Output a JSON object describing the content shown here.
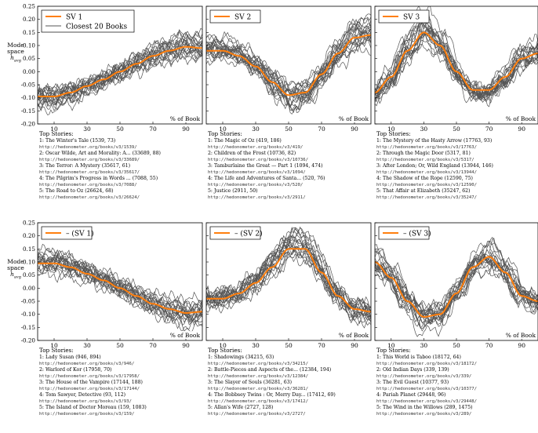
{
  "chart_data": [
    {
      "type": "line",
      "title": "",
      "xlabel": "% of Book",
      "ylabel": "Mode space h_avg",
      "xlim": [
        0,
        100
      ],
      "ylim": [
        -0.2,
        0.25
      ],
      "xticks": [
        10,
        30,
        50,
        70,
        90
      ],
      "yticks": [
        -0.2,
        -0.15,
        -0.1,
        -0.05,
        0.0,
        0.05,
        0.1,
        0.15,
        0.2,
        0.25
      ],
      "legend": "top-left",
      "series": [
        {
          "name": "SV 1",
          "x": [
            0,
            10,
            20,
            30,
            40,
            50,
            60,
            70,
            80,
            90,
            100
          ],
          "y": [
            -0.095,
            -0.095,
            -0.08,
            -0.055,
            -0.03,
            0.0,
            0.03,
            0.06,
            0.08,
            0.095,
            0.09
          ]
        },
        {
          "name": "Closest 20 Books",
          "x": [],
          "y": []
        }
      ]
    },
    {
      "type": "line",
      "xlabel": "% of Book",
      "xlim": [
        0,
        100
      ],
      "ylim": [
        -0.2,
        0.25
      ],
      "legend": "top-left",
      "series": [
        {
          "name": "SV 2",
          "x": [
            0,
            10,
            20,
            30,
            40,
            50,
            60,
            70,
            80,
            90,
            100
          ],
          "y": [
            0.08,
            0.08,
            0.06,
            0.02,
            -0.04,
            -0.09,
            -0.08,
            -0.01,
            0.07,
            0.13,
            0.14
          ]
        }
      ]
    },
    {
      "type": "line",
      "xlabel": "% of Book",
      "xlim": [
        0,
        100
      ],
      "ylim": [
        -0.2,
        0.25
      ],
      "legend": "top-left",
      "series": [
        {
          "name": "SV 3",
          "x": [
            0,
            10,
            20,
            30,
            40,
            50,
            60,
            70,
            80,
            90,
            100
          ],
          "y": [
            -0.08,
            -0.02,
            0.08,
            0.15,
            0.1,
            0.0,
            -0.07,
            -0.07,
            -0.02,
            0.05,
            0.07
          ]
        }
      ]
    },
    {
      "type": "line",
      "xlabel": "% of Book",
      "ylabel": "Mode space h_avg",
      "xlim": [
        0,
        100
      ],
      "ylim": [
        -0.2,
        0.25
      ],
      "legend": "top-left",
      "series": [
        {
          "name": "– (SV 1)",
          "x": [
            0,
            10,
            20,
            30,
            40,
            50,
            60,
            70,
            80,
            90,
            100
          ],
          "y": [
            0.095,
            0.095,
            0.08,
            0.055,
            0.03,
            0.0,
            -0.03,
            -0.06,
            -0.08,
            -0.095,
            -0.09
          ]
        }
      ]
    },
    {
      "type": "line",
      "xlabel": "% of Book",
      "xlim": [
        0,
        100
      ],
      "ylim": [
        -0.2,
        0.25
      ],
      "legend": "top-left",
      "series": [
        {
          "name": "– (SV 2)",
          "x": [
            0,
            10,
            20,
            30,
            40,
            50,
            60,
            70,
            80,
            90,
            100
          ],
          "y": [
            -0.04,
            -0.04,
            -0.02,
            0.02,
            0.08,
            0.15,
            0.15,
            0.06,
            -0.03,
            -0.08,
            -0.09
          ]
        }
      ]
    },
    {
      "type": "line",
      "xlabel": "% of Book",
      "xlim": [
        0,
        100
      ],
      "ylim": [
        -0.2,
        0.25
      ],
      "legend": "top-left",
      "series": [
        {
          "name": "– (SV 3)",
          "x": [
            0,
            10,
            20,
            30,
            40,
            50,
            60,
            70,
            80,
            90,
            100
          ],
          "y": [
            0.1,
            0.04,
            -0.05,
            -0.11,
            -0.1,
            -0.02,
            0.08,
            0.12,
            0.06,
            -0.03,
            -0.05
          ]
        }
      ]
    }
  ],
  "labels": {
    "top_stories": "Top Stories:",
    "mode_space": "Mode space",
    "havg": "h",
    "havg_sub": "avg"
  },
  "stories": [
    [
      {
        "t": "1: The Winter's Tale (1539, 73)",
        "u": "http://hedonometer.org/books/v3/1539/"
      },
      {
        "t": "2: Oscar Wilde, Art and Morality: A... (33689, 88)",
        "u": "http://hedonometer.org/books/v3/33689/"
      },
      {
        "t": "3: The Terror: A Mystery (35617, 61)",
        "u": "http://hedonometer.org/books/v3/35617/"
      },
      {
        "t": "4: The Pilgrim's Progress in Words ... (7088, 55)",
        "u": "http://hedonometer.org/books/v3/7088/"
      },
      {
        "t": "5: The Road to Oz (26624, 68)",
        "u": "http://hedonometer.org/books/v3/26624/"
      }
    ],
    [
      {
        "t": "1: The Magic of Oz (419, 186)",
        "u": "http://hedonometer.org/books/v3/419/"
      },
      {
        "t": "2: Children of the Frost (10736, 82)",
        "u": "http://hedonometer.org/books/v3/10736/"
      },
      {
        "t": "3: Tamburlaine the Great — Part 1 (1094, 474)",
        "u": "http://hedonometer.org/books/v3/1094/"
      },
      {
        "t": "4: The Life and Adventures of Santa... (520, 76)",
        "u": "http://hedonometer.org/books/v3/520/"
      },
      {
        "t": "5: Justice (2911, 50)",
        "u": "http://hedonometer.org/books/v3/2911/"
      }
    ],
    [
      {
        "t": "1: The Mystery of the Hasty Arrow (17763, 93)",
        "u": "http://hedonometer.org/books/v3/17763/"
      },
      {
        "t": "2: Through the Magic Door (5317, 81)",
        "u": "http://hedonometer.org/books/v3/5317/"
      },
      {
        "t": "3: After London; Or, Wild England (13944, 146)",
        "u": "http://hedonometer.org/books/v3/13944/"
      },
      {
        "t": "4: The Shadow of the Rope (12590, 75)",
        "u": "http://hedonometer.org/books/v3/12590/"
      },
      {
        "t": "5: That Affair at Elizabeth (35247, 62)",
        "u": "http://hedonometer.org/books/v3/35247/"
      }
    ],
    [
      {
        "t": "1: Lady Susan (946, 894)",
        "u": "http://hedonometer.org/books/v3/946/"
      },
      {
        "t": "2: Warlord of Kor (17958, 70)",
        "u": "http://hedonometer.org/books/v3/17958/"
      },
      {
        "t": "3: The House of the Vampire (17144, 188)",
        "u": "http://hedonometer.org/books/v3/17144/"
      },
      {
        "t": "4: Tom Sawyer, Detective (93, 112)",
        "u": "http://hedonometer.org/books/v3/93/"
      },
      {
        "t": "5: The Island of Doctor Moreau (159, 1083)",
        "u": "http://hedonometer.org/books/v3/159/"
      }
    ],
    [
      {
        "t": "1: Shadowings (34215, 63)",
        "u": "http://hedonometer.org/books/v3/34215/"
      },
      {
        "t": "2: Battle-Pieces and Aspects of the... (12384, 194)",
        "u": "http://hedonometer.org/books/v3/12384/"
      },
      {
        "t": "3: The Slayer of Souls (36281, 63)",
        "u": "http://hedonometer.org/books/v3/36281/"
      },
      {
        "t": "4: The Bobbsey Twins : Or, Merry Day... (17412, 69)",
        "u": "http://hedonometer.org/books/v3/17412/"
      },
      {
        "t": "5: Allan's Wife (2727, 128)",
        "u": "http://hedonometer.org/books/v3/2727/"
      }
    ],
    [
      {
        "t": "1: This World is Taboo (18172, 64)",
        "u": "http://hedonometer.org/books/v3/18172/"
      },
      {
        "t": "2: Old Indian Days (339, 139)",
        "u": "http://hedonometer.org/books/v3/339/"
      },
      {
        "t": "3: The Evil Guest (10377, 93)",
        "u": "http://hedonometer.org/books/v3/10377/"
      },
      {
        "t": "4: Pariah Planet (29448, 96)",
        "u": "http://hedonometer.org/books/v3/29448/"
      },
      {
        "t": "5: The Wind in the Willows (289, 1475)",
        "u": "http://hedonometer.org/books/v3/289/"
      }
    ]
  ]
}
